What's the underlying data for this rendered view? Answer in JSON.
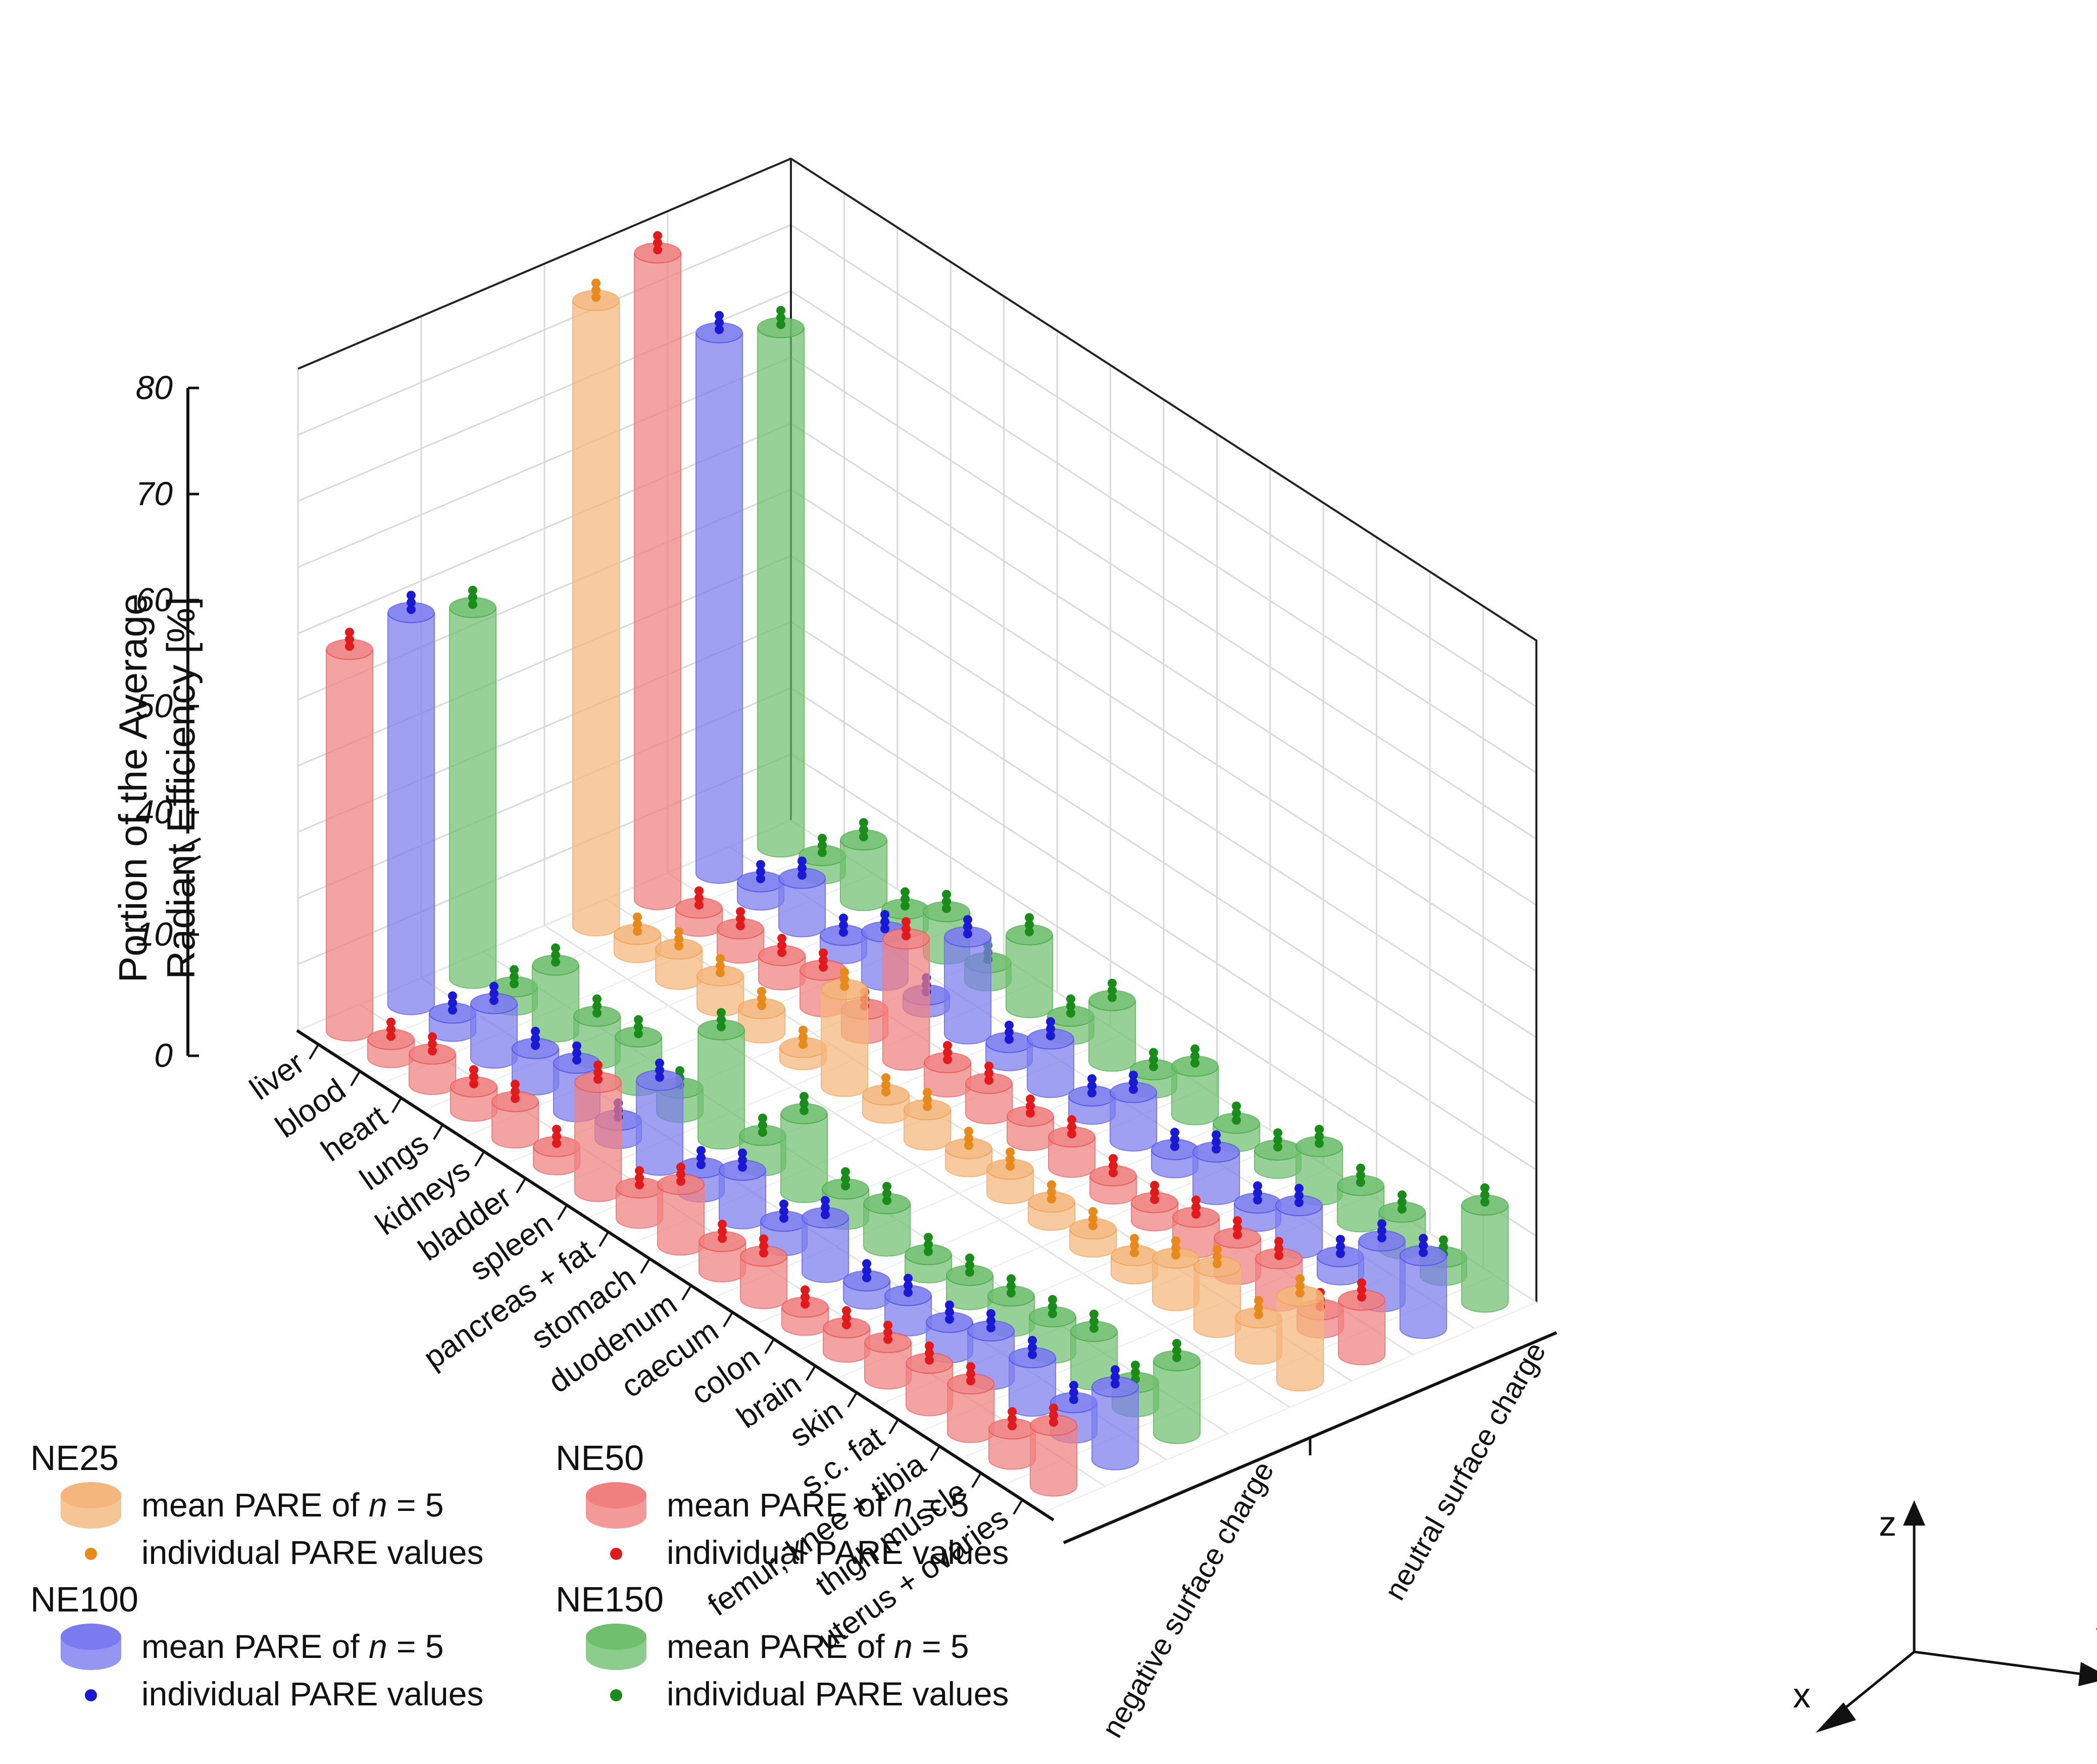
{
  "chart_data": {
    "type": "bar",
    "subtype": "3d-cylinder-bar",
    "zlabel_line1": "Portion of the Average",
    "zlabel_line2": "Radiant Efficiency [%]",
    "z_ticks_lower": [
      "0",
      "10"
    ],
    "z_ticks_upper": [
      "40",
      "50",
      "60",
      "70",
      "80"
    ],
    "z_axis_break": [
      15,
      36
    ],
    "categories": [
      "liver",
      "blood",
      "heart",
      "lungs",
      "kidneys",
      "bladder",
      "spleen",
      "pancreas + fat",
      "stomach",
      "duodenum",
      "caecum",
      "colon",
      "brain",
      "skin",
      "s.c. fat",
      "femur, knee + tibia",
      "thigh muscle",
      "uterus + ovaries"
    ],
    "y_categories": [
      "negative surface charge",
      "neutral surface charge"
    ],
    "series": [
      {
        "name": "NE25",
        "charge": "neutral surface charge",
        "color": "#f4b67c",
        "dot_color": "#e8891c",
        "values": [
          76,
          1.5,
          2.5,
          2.5,
          2,
          1,
          8,
          1.5,
          2.5,
          1.5,
          2,
          1.5,
          1.5,
          1.5,
          3.5,
          5,
          3,
          7
        ]
      },
      {
        "name": "NE50",
        "charge": "neutral surface charge",
        "color": "#f08080",
        "dot_color": "#e31a1c",
        "values": [
          78,
          1.5,
          2,
          2,
          3,
          2,
          10,
          2,
          2.5,
          2,
          2.5,
          1.5,
          1.5,
          2.5,
          3,
          3.5,
          1.5,
          4.5
        ]
      },
      {
        "name": "NE100",
        "charge": "neutral surface charge",
        "color": "#7b7bef",
        "dot_color": "#1a1ad6",
        "values": [
          68,
          1.5,
          4,
          1.5,
          4,
          1,
          8,
          1.5,
          4,
          1.5,
          4,
          1.5,
          3.5,
          1.5,
          3.5,
          1.5,
          5,
          6
        ]
      },
      {
        "name": "NE150",
        "charge": "neutral surface charge",
        "color": "#6fbf6f",
        "dot_color": "#1a8c1a",
        "values": [
          66,
          1.5,
          5,
          1.5,
          3.5,
          1.5,
          6,
          1.5,
          5,
          1.5,
          4,
          1.5,
          1.5,
          4,
          3,
          3,
          1.5,
          8
        ]
      },
      {
        "name": "NE50",
        "charge": "negative surface charge",
        "color": "#f08080",
        "dot_color": "#e31a1c",
        "values": [
          53,
          1.5,
          2.5,
          2,
          3,
          1.5,
          9,
          2.5,
          5,
          2.5,
          3.5,
          1.5,
          2,
          3,
          3.5,
          4,
          2.5,
          5
        ]
      },
      {
        "name": "NE100",
        "charge": "negative surface charge",
        "color": "#7b7bef",
        "dot_color": "#1a1ad6",
        "values": [
          54,
          1.5,
          4.5,
          3,
          4,
          1.5,
          7,
          2,
          4,
          2,
          4.5,
          1.5,
          2.5,
          2.5,
          4,
          4,
          2.5,
          6
        ]
      },
      {
        "name": "NE150",
        "charge": "negative surface charge",
        "color": "#6fbf6f",
        "dot_color": "#1a8c1a",
        "values": [
          52,
          1.5,
          5.5,
          3.5,
          4,
          2,
          9,
          2.5,
          6.5,
          2.5,
          3.5,
          1.5,
          2,
          2.5,
          3,
          4,
          2,
          6
        ]
      }
    ]
  },
  "legend": [
    {
      "title": "NE25",
      "mean_prefix": "mean PARE of ",
      "n_symbol": "n",
      "mean_suffix": " = 5",
      "individual": "individual PARE values",
      "color": "#f4b67c",
      "dot_color": "#e8891c"
    },
    {
      "title": "NE50",
      "mean_prefix": "mean PARE of ",
      "n_symbol": "n",
      "mean_suffix": " = 5",
      "individual": "individual PARE values",
      "color": "#f08080",
      "dot_color": "#e31a1c"
    },
    {
      "title": "NE100",
      "mean_prefix": "mean PARE of ",
      "n_symbol": "n",
      "mean_suffix": " = 5",
      "individual": "individual PARE values",
      "color": "#7b7bef",
      "dot_color": "#1a1ad6"
    },
    {
      "title": "NE150",
      "mean_prefix": "mean PARE of ",
      "n_symbol": "n",
      "mean_suffix": " = 5",
      "individual": "individual PARE values",
      "color": "#6fbf6f",
      "dot_color": "#1a8c1a"
    }
  ],
  "direction_labels": {
    "x": "x",
    "y": "y",
    "z": "z"
  }
}
